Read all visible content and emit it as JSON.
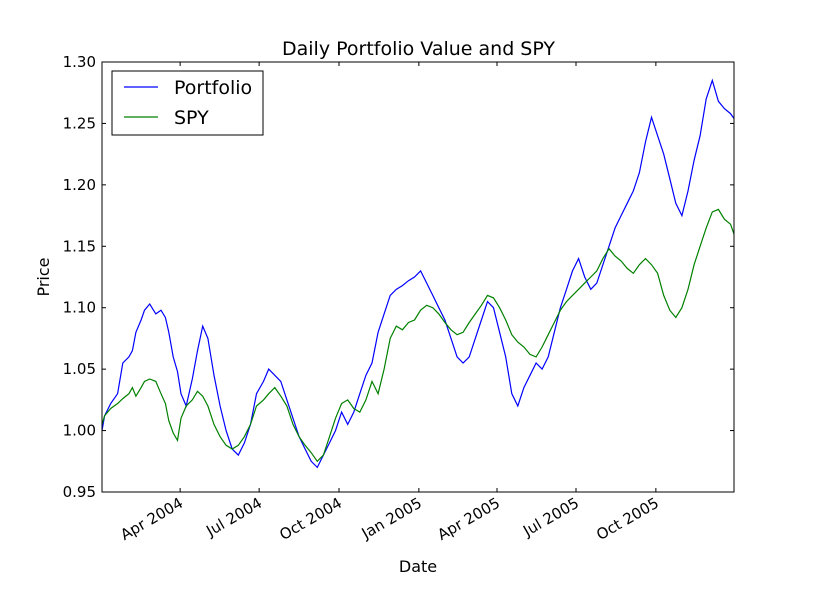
{
  "chart_data": {
    "type": "line",
    "title": "Daily Portfolio Value and SPY",
    "xlabel": "Date",
    "ylabel": "Price",
    "xlim": [
      "2004-01-02",
      "2005-12-30"
    ],
    "ylim": [
      0.95,
      1.3
    ],
    "y_ticks": [
      "0.95",
      "1.00",
      "1.05",
      "1.10",
      "1.15",
      "1.20",
      "1.25",
      "1.30"
    ],
    "x_ticks": [
      {
        "date": "2004-04-01",
        "label": "Apr 2004"
      },
      {
        "date": "2004-07-01",
        "label": "Jul 2004"
      },
      {
        "date": "2004-10-01",
        "label": "Oct 2004"
      },
      {
        "date": "2005-01-01",
        "label": "Jan 2005"
      },
      {
        "date": "2005-04-01",
        "label": "Apr 2005"
      },
      {
        "date": "2005-07-01",
        "label": "Jul 2005"
      },
      {
        "date": "2005-10-01",
        "label": "Oct 2005"
      }
    ],
    "grid": false,
    "legend_position": "top-left",
    "series": [
      {
        "name": "Portfolio",
        "color": "#0000ff",
        "points": [
          [
            "2004-01-02",
            1.0
          ],
          [
            "2004-01-05",
            1.012
          ],
          [
            "2004-01-12",
            1.022
          ],
          [
            "2004-01-20",
            1.03
          ],
          [
            "2004-01-26",
            1.055
          ],
          [
            "2004-02-02",
            1.06
          ],
          [
            "2004-02-06",
            1.065
          ],
          [
            "2004-02-10",
            1.08
          ],
          [
            "2004-02-16",
            1.09
          ],
          [
            "2004-02-20",
            1.098
          ],
          [
            "2004-02-26",
            1.103
          ],
          [
            "2004-03-04",
            1.095
          ],
          [
            "2004-03-10",
            1.098
          ],
          [
            "2004-03-15",
            1.092
          ],
          [
            "2004-03-19",
            1.08
          ],
          [
            "2004-03-24",
            1.06
          ],
          [
            "2004-03-29",
            1.048
          ],
          [
            "2004-04-02",
            1.03
          ],
          [
            "2004-04-08",
            1.02
          ],
          [
            "2004-04-15",
            1.042
          ],
          [
            "2004-04-21",
            1.065
          ],
          [
            "2004-04-27",
            1.085
          ],
          [
            "2004-05-03",
            1.075
          ],
          [
            "2004-05-10",
            1.045
          ],
          [
            "2004-05-17",
            1.02
          ],
          [
            "2004-05-24",
            1.0
          ],
          [
            "2004-05-31",
            0.985
          ],
          [
            "2004-06-07",
            0.98
          ],
          [
            "2004-06-14",
            0.99
          ],
          [
            "2004-06-21",
            1.005
          ],
          [
            "2004-06-28",
            1.03
          ],
          [
            "2004-07-06",
            1.04
          ],
          [
            "2004-07-12",
            1.05
          ],
          [
            "2004-07-19",
            1.045
          ],
          [
            "2004-07-26",
            1.04
          ],
          [
            "2004-08-02",
            1.025
          ],
          [
            "2004-08-09",
            1.01
          ],
          [
            "2004-08-16",
            0.995
          ],
          [
            "2004-08-23",
            0.985
          ],
          [
            "2004-08-30",
            0.975
          ],
          [
            "2004-09-06",
            0.97
          ],
          [
            "2004-09-13",
            0.98
          ],
          [
            "2004-09-20",
            0.99
          ],
          [
            "2004-09-27",
            1.0
          ],
          [
            "2004-10-04",
            1.015
          ],
          [
            "2004-10-11",
            1.005
          ],
          [
            "2004-10-18",
            1.015
          ],
          [
            "2004-10-25",
            1.03
          ],
          [
            "2004-11-01",
            1.045
          ],
          [
            "2004-11-08",
            1.055
          ],
          [
            "2004-11-15",
            1.08
          ],
          [
            "2004-11-22",
            1.095
          ],
          [
            "2004-11-29",
            1.11
          ],
          [
            "2004-12-06",
            1.115
          ],
          [
            "2004-12-13",
            1.118
          ],
          [
            "2004-12-20",
            1.122
          ],
          [
            "2004-12-27",
            1.125
          ],
          [
            "2005-01-03",
            1.13
          ],
          [
            "2005-01-10",
            1.12
          ],
          [
            "2005-01-17",
            1.11
          ],
          [
            "2005-01-24",
            1.1
          ],
          [
            "2005-01-31",
            1.09
          ],
          [
            "2005-02-07",
            1.075
          ],
          [
            "2005-02-14",
            1.06
          ],
          [
            "2005-02-21",
            1.055
          ],
          [
            "2005-02-28",
            1.06
          ],
          [
            "2005-03-07",
            1.075
          ],
          [
            "2005-03-14",
            1.09
          ],
          [
            "2005-03-21",
            1.105
          ],
          [
            "2005-03-28",
            1.1
          ],
          [
            "2005-04-04",
            1.08
          ],
          [
            "2005-04-11",
            1.06
          ],
          [
            "2005-04-18",
            1.03
          ],
          [
            "2005-04-25",
            1.02
          ],
          [
            "2005-05-02",
            1.035
          ],
          [
            "2005-05-09",
            1.045
          ],
          [
            "2005-05-16",
            1.055
          ],
          [
            "2005-05-23",
            1.05
          ],
          [
            "2005-05-30",
            1.06
          ],
          [
            "2005-06-06",
            1.08
          ],
          [
            "2005-06-13",
            1.1
          ],
          [
            "2005-06-20",
            1.115
          ],
          [
            "2005-06-27",
            1.13
          ],
          [
            "2005-07-04",
            1.14
          ],
          [
            "2005-07-11",
            1.125
          ],
          [
            "2005-07-18",
            1.115
          ],
          [
            "2005-07-25",
            1.12
          ],
          [
            "2005-08-01",
            1.135
          ],
          [
            "2005-08-08",
            1.15
          ],
          [
            "2005-08-15",
            1.165
          ],
          [
            "2005-08-22",
            1.175
          ],
          [
            "2005-08-29",
            1.185
          ],
          [
            "2005-09-05",
            1.195
          ],
          [
            "2005-09-12",
            1.21
          ],
          [
            "2005-09-19",
            1.235
          ],
          [
            "2005-09-26",
            1.255
          ],
          [
            "2005-10-03",
            1.24
          ],
          [
            "2005-10-10",
            1.225
          ],
          [
            "2005-10-17",
            1.205
          ],
          [
            "2005-10-24",
            1.185
          ],
          [
            "2005-10-31",
            1.175
          ],
          [
            "2005-11-07",
            1.195
          ],
          [
            "2005-11-14",
            1.22
          ],
          [
            "2005-11-21",
            1.24
          ],
          [
            "2005-11-28",
            1.27
          ],
          [
            "2005-12-05",
            1.285
          ],
          [
            "2005-12-12",
            1.268
          ],
          [
            "2005-12-19",
            1.262
          ],
          [
            "2005-12-26",
            1.258
          ],
          [
            "2005-12-30",
            1.254
          ]
        ]
      },
      {
        "name": "SPY",
        "color": "#008000",
        "points": [
          [
            "2004-01-02",
            1.005
          ],
          [
            "2004-01-05",
            1.012
          ],
          [
            "2004-01-12",
            1.018
          ],
          [
            "2004-01-20",
            1.022
          ],
          [
            "2004-01-26",
            1.026
          ],
          [
            "2004-02-02",
            1.03
          ],
          [
            "2004-02-06",
            1.035
          ],
          [
            "2004-02-10",
            1.028
          ],
          [
            "2004-02-16",
            1.035
          ],
          [
            "2004-02-20",
            1.04
          ],
          [
            "2004-02-26",
            1.042
          ],
          [
            "2004-03-04",
            1.04
          ],
          [
            "2004-03-10",
            1.03
          ],
          [
            "2004-03-15",
            1.022
          ],
          [
            "2004-03-19",
            1.008
          ],
          [
            "2004-03-24",
            0.998
          ],
          [
            "2004-03-29",
            0.992
          ],
          [
            "2004-04-02",
            1.01
          ],
          [
            "2004-04-08",
            1.02
          ],
          [
            "2004-04-15",
            1.025
          ],
          [
            "2004-04-21",
            1.032
          ],
          [
            "2004-04-27",
            1.028
          ],
          [
            "2004-05-03",
            1.02
          ],
          [
            "2004-05-10",
            1.005
          ],
          [
            "2004-05-17",
            0.995
          ],
          [
            "2004-05-24",
            0.988
          ],
          [
            "2004-05-31",
            0.985
          ],
          [
            "2004-06-07",
            0.988
          ],
          [
            "2004-06-14",
            0.995
          ],
          [
            "2004-06-21",
            1.005
          ],
          [
            "2004-06-28",
            1.02
          ],
          [
            "2004-07-06",
            1.025
          ],
          [
            "2004-07-12",
            1.03
          ],
          [
            "2004-07-19",
            1.035
          ],
          [
            "2004-07-26",
            1.028
          ],
          [
            "2004-08-02",
            1.02
          ],
          [
            "2004-08-09",
            1.005
          ],
          [
            "2004-08-16",
            0.995
          ],
          [
            "2004-08-23",
            0.988
          ],
          [
            "2004-08-30",
            0.982
          ],
          [
            "2004-09-06",
            0.975
          ],
          [
            "2004-09-13",
            0.98
          ],
          [
            "2004-09-20",
            0.995
          ],
          [
            "2004-09-27",
            1.01
          ],
          [
            "2004-10-04",
            1.022
          ],
          [
            "2004-10-11",
            1.025
          ],
          [
            "2004-10-18",
            1.018
          ],
          [
            "2004-10-25",
            1.015
          ],
          [
            "2004-11-01",
            1.025
          ],
          [
            "2004-11-08",
            1.04
          ],
          [
            "2004-11-15",
            1.03
          ],
          [
            "2004-11-22",
            1.05
          ],
          [
            "2004-11-29",
            1.075
          ],
          [
            "2004-12-06",
            1.085
          ],
          [
            "2004-12-13",
            1.082
          ],
          [
            "2004-12-20",
            1.088
          ],
          [
            "2004-12-27",
            1.09
          ],
          [
            "2005-01-03",
            1.098
          ],
          [
            "2005-01-10",
            1.102
          ],
          [
            "2005-01-17",
            1.1
          ],
          [
            "2005-01-24",
            1.095
          ],
          [
            "2005-01-31",
            1.088
          ],
          [
            "2005-02-07",
            1.082
          ],
          [
            "2005-02-14",
            1.078
          ],
          [
            "2005-02-21",
            1.08
          ],
          [
            "2005-02-28",
            1.088
          ],
          [
            "2005-03-07",
            1.095
          ],
          [
            "2005-03-14",
            1.102
          ],
          [
            "2005-03-21",
            1.11
          ],
          [
            "2005-03-28",
            1.108
          ],
          [
            "2005-04-04",
            1.1
          ],
          [
            "2005-04-11",
            1.09
          ],
          [
            "2005-04-18",
            1.078
          ],
          [
            "2005-04-25",
            1.072
          ],
          [
            "2005-05-02",
            1.068
          ],
          [
            "2005-05-09",
            1.062
          ],
          [
            "2005-05-16",
            1.06
          ],
          [
            "2005-05-23",
            1.068
          ],
          [
            "2005-05-30",
            1.078
          ],
          [
            "2005-06-06",
            1.088
          ],
          [
            "2005-06-13",
            1.098
          ],
          [
            "2005-06-20",
            1.105
          ],
          [
            "2005-06-27",
            1.11
          ],
          [
            "2005-07-04",
            1.115
          ],
          [
            "2005-07-11",
            1.12
          ],
          [
            "2005-07-18",
            1.125
          ],
          [
            "2005-07-25",
            1.13
          ],
          [
            "2005-08-01",
            1.14
          ],
          [
            "2005-08-08",
            1.148
          ],
          [
            "2005-08-15",
            1.142
          ],
          [
            "2005-08-22",
            1.138
          ],
          [
            "2005-08-29",
            1.132
          ],
          [
            "2005-09-05",
            1.128
          ],
          [
            "2005-09-12",
            1.135
          ],
          [
            "2005-09-19",
            1.14
          ],
          [
            "2005-09-26",
            1.135
          ],
          [
            "2005-10-03",
            1.128
          ],
          [
            "2005-10-10",
            1.11
          ],
          [
            "2005-10-17",
            1.098
          ],
          [
            "2005-10-24",
            1.092
          ],
          [
            "2005-10-31",
            1.1
          ],
          [
            "2005-11-07",
            1.115
          ],
          [
            "2005-11-14",
            1.135
          ],
          [
            "2005-11-21",
            1.15
          ],
          [
            "2005-11-28",
            1.165
          ],
          [
            "2005-12-05",
            1.178
          ],
          [
            "2005-12-12",
            1.18
          ],
          [
            "2005-12-19",
            1.172
          ],
          [
            "2005-12-26",
            1.168
          ],
          [
            "2005-12-30",
            1.16
          ]
        ]
      }
    ]
  }
}
